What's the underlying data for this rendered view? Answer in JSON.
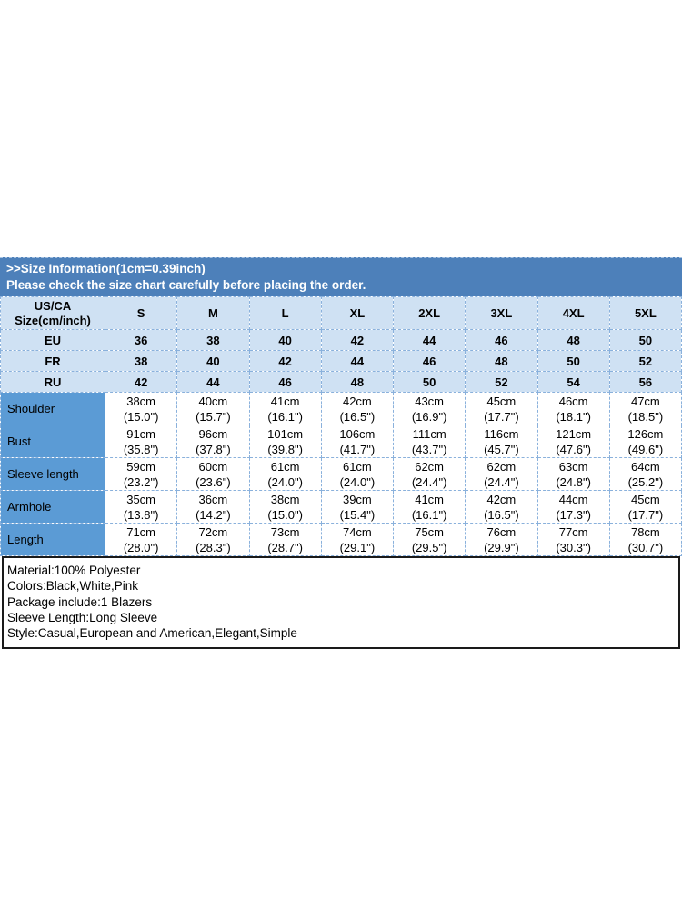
{
  "colors": {
    "banner_bg": "#4d80ba",
    "banner_text": "#ffffff",
    "header_cell_bg": "#cfe1f3",
    "measure_label_bg": "#5b9bd5",
    "grid_line": "#8ab1dc",
    "info_border": "#1a1a1a",
    "text": "#000000"
  },
  "banner": {
    "line1": ">>Size Information(1cm=0.39inch)",
    "line2": "Please check the size chart carefully before placing the order."
  },
  "size_table": {
    "corner": [
      "US/CA",
      "Size(cm/inch)"
    ],
    "sizes": [
      "S",
      "M",
      "L",
      "XL",
      "2XL",
      "3XL",
      "4XL",
      "5XL"
    ],
    "region_rows": [
      {
        "label": "EU",
        "values": [
          "36",
          "38",
          "40",
          "42",
          "44",
          "46",
          "48",
          "50"
        ]
      },
      {
        "label": "FR",
        "values": [
          "38",
          "40",
          "42",
          "44",
          "46",
          "48",
          "50",
          "52"
        ]
      },
      {
        "label": "RU",
        "values": [
          "42",
          "44",
          "46",
          "48",
          "50",
          "52",
          "54",
          "56"
        ]
      }
    ],
    "measurement_rows": [
      {
        "label": "Shoulder",
        "cells": [
          {
            "cm": "38cm",
            "inch": "(15.0\")"
          },
          {
            "cm": "40cm",
            "inch": "(15.7\")"
          },
          {
            "cm": "41cm",
            "inch": "(16.1\")"
          },
          {
            "cm": "42cm",
            "inch": "(16.5\")"
          },
          {
            "cm": "43cm",
            "inch": "(16.9\")"
          },
          {
            "cm": "45cm",
            "inch": "(17.7\")"
          },
          {
            "cm": "46cm",
            "inch": "(18.1\")"
          },
          {
            "cm": "47cm",
            "inch": "(18.5\")"
          }
        ]
      },
      {
        "label": "Bust",
        "cells": [
          {
            "cm": "91cm",
            "inch": "(35.8\")"
          },
          {
            "cm": "96cm",
            "inch": "(37.8\")"
          },
          {
            "cm": "101cm",
            "inch": "(39.8\")"
          },
          {
            "cm": "106cm",
            "inch": "(41.7\")"
          },
          {
            "cm": "111cm",
            "inch": "(43.7\")"
          },
          {
            "cm": "116cm",
            "inch": "(45.7\")"
          },
          {
            "cm": "121cm",
            "inch": "(47.6\")"
          },
          {
            "cm": "126cm",
            "inch": "(49.6\")"
          }
        ]
      },
      {
        "label": "Sleeve length",
        "cells": [
          {
            "cm": "59cm",
            "inch": "(23.2\")"
          },
          {
            "cm": "60cm",
            "inch": "(23.6\")"
          },
          {
            "cm": "61cm",
            "inch": "(24.0\")"
          },
          {
            "cm": "61cm",
            "inch": "(24.0\")"
          },
          {
            "cm": "62cm",
            "inch": "(24.4\")"
          },
          {
            "cm": "62cm",
            "inch": "(24.4\")"
          },
          {
            "cm": "63cm",
            "inch": "(24.8\")"
          },
          {
            "cm": "64cm",
            "inch": "(25.2\")"
          }
        ]
      },
      {
        "label": "Armhole",
        "cells": [
          {
            "cm": "35cm",
            "inch": "(13.8\")"
          },
          {
            "cm": "36cm",
            "inch": "(14.2\")"
          },
          {
            "cm": "38cm",
            "inch": "(15.0\")"
          },
          {
            "cm": "39cm",
            "inch": "(15.4\")"
          },
          {
            "cm": "41cm",
            "inch": "(16.1\")"
          },
          {
            "cm": "42cm",
            "inch": "(16.5\")"
          },
          {
            "cm": "44cm",
            "inch": "(17.3\")"
          },
          {
            "cm": "45cm",
            "inch": "(17.7\")"
          }
        ]
      },
      {
        "label": "Length",
        "cells": [
          {
            "cm": "71cm",
            "inch": "(28.0\")"
          },
          {
            "cm": "72cm",
            "inch": "(28.3\")"
          },
          {
            "cm": "73cm",
            "inch": "(28.7\")"
          },
          {
            "cm": "74cm",
            "inch": "(29.1\")"
          },
          {
            "cm": "75cm",
            "inch": "(29.5\")"
          },
          {
            "cm": "76cm",
            "inch": "(29.9\")"
          },
          {
            "cm": "77cm",
            "inch": "(30.3\")"
          },
          {
            "cm": "78cm",
            "inch": "(30.7\")"
          }
        ]
      }
    ]
  },
  "info": {
    "lines": [
      "Material:100% Polyester",
      "Colors:Black,White,Pink",
      "Package include:1 Blazers",
      "Sleeve Length:Long Sleeve",
      "Style:Casual,European and American,Elegant,Simple"
    ]
  }
}
